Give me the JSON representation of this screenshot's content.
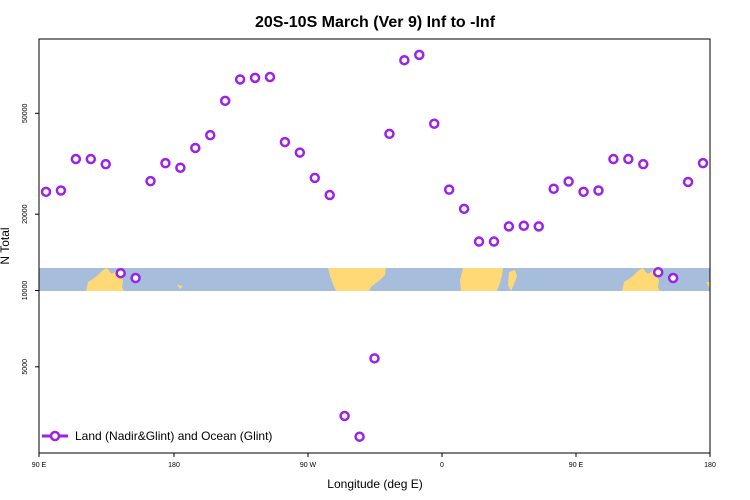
{
  "chart_data": {
    "type": "scatter",
    "title": "20S-10S March (Ver 9)   Inf to -Inf",
    "xlabel": "Longitude (deg E)",
    "ylabel": "N Total",
    "y_scale": "log",
    "ylim": [
      2400,
      100000
    ],
    "x_tick_labels": [
      "90 E",
      "180",
      "90 W",
      "0",
      "90 E",
      "180"
    ],
    "y_tick_labels": [
      "5000",
      "10000",
      "20000",
      "50000"
    ],
    "y_ticks": [
      5000,
      10000,
      20000,
      50000
    ],
    "series": [
      {
        "name": "Land (Nadir&Glint) and Ocean (Glint)",
        "color": "#9b22e6",
        "marker": "open-circle",
        "x": [
          0,
          1,
          2,
          3,
          4,
          5,
          6,
          7,
          8,
          9,
          10,
          11,
          12,
          13,
          14,
          15,
          16,
          17,
          18,
          19,
          20,
          21,
          22,
          23,
          24,
          25,
          26,
          27,
          28,
          29,
          30,
          31,
          32,
          33,
          34,
          35,
          36,
          37,
          38,
          39,
          40,
          41,
          42,
          43,
          44
        ],
        "y": [
          24500,
          24800,
          33000,
          33000,
          31500,
          11700,
          11200,
          27000,
          31800,
          30500,
          36500,
          41000,
          56000,
          68000,
          69000,
          69500,
          38500,
          35000,
          27800,
          23800,
          3200,
          2650,
          5400,
          41500,
          81000,
          85000,
          45500,
          25000,
          21000,
          15600,
          15600,
          17900,
          18000,
          17900,
          25200,
          26900,
          24500,
          24800,
          33000,
          33000,
          31500,
          11800,
          11200,
          26800,
          31800
        ]
      }
    ],
    "map_strip": {
      "ocean_color": "#a6bddb",
      "land_color": "#fed976"
    }
  }
}
